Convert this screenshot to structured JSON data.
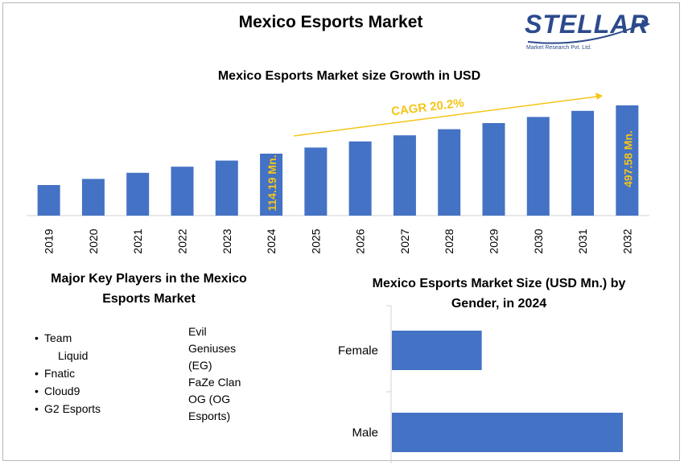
{
  "header": {
    "title": "Mexico Esports Market",
    "logo_word": "STELLAR",
    "logo_sub": "Market Research Pvt. Ltd."
  },
  "colors": {
    "bar": "#4472c4",
    "accent": "#f5c518"
  },
  "chart_data": [
    {
      "type": "bar",
      "title": "Mexico Esports Market size Growth in USD",
      "categories": [
        "2019",
        "2020",
        "2021",
        "2022",
        "2023",
        "2024",
        "2025",
        "2026",
        "2027",
        "2028",
        "2029",
        "2030",
        "2031",
        "2032"
      ],
      "values": [
        37.9,
        45.6,
        54.8,
        65.8,
        79.1,
        114.19,
        124.2,
        137.5,
        150.7,
        163.9,
        178.5,
        194.6,
        210.4,
        497.58
      ],
      "data_labels": [
        {
          "index": 5,
          "text": "114.19 Mn."
        },
        {
          "index": 13,
          "text": "497.58 Mn."
        }
      ],
      "annotation": "CAGR 20.2%",
      "xlabel": "",
      "ylabel": "",
      "grid": false
    },
    {
      "type": "bar",
      "orientation": "horizontal",
      "title": "Mexico Esports Market Size (USD Mn.) by Gender, in 2024",
      "categories": [
        "Female",
        "Male"
      ],
      "values": [
        38.9,
        100
      ],
      "xlabel": "",
      "ylabel": "",
      "grid": false
    }
  ],
  "players": {
    "title": "Major Key Players in the Mexico Esports Market",
    "left": [
      {
        "line1": "Team",
        "line2": "Liquid"
      },
      {
        "line1": "Fnatic"
      },
      {
        "line1": "Cloud9"
      },
      {
        "line1": "G2 Esports"
      }
    ],
    "right": [
      "Evil",
      "Geniuses",
      "(EG)",
      "FaZe Clan",
      "OG (OG",
      "Esports)"
    ]
  }
}
